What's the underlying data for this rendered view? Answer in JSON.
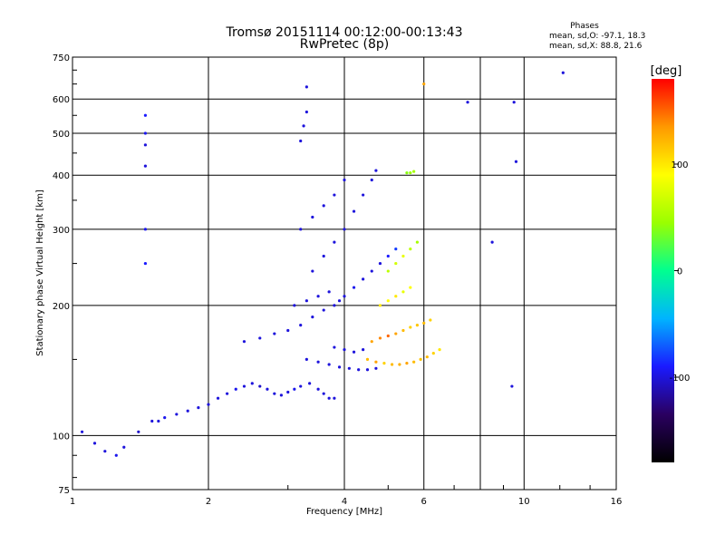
{
  "chart_data": {
    "type": "scatter",
    "title": "Tromsø 20151114 00:12:00-00:13:43",
    "subtitle": "RwPretec (8p)",
    "xlabel": "Frequency [MHz]",
    "ylabel": "Stationary phase Virtual Height [km]",
    "x_scale": "log",
    "y_scale": "log",
    "xlim": [
      1,
      16
    ],
    "ylim": [
      75,
      750
    ],
    "x_ticks": [
      1,
      2,
      4,
      6,
      10,
      16
    ],
    "x_gridlines": [
      2,
      4,
      6,
      8,
      10
    ],
    "y_ticks": [
      75,
      100,
      200,
      300,
      400,
      500,
      600,
      750
    ],
    "grid": true,
    "legend": {
      "title": "Phases",
      "lines": [
        "mean, sd,O:  -97.1, 18.3",
        "mean, sd,X:   88.8, 21.6"
      ],
      "placement": "top-right"
    },
    "colorbar": {
      "label": "[deg]",
      "placement": "right",
      "range": [
        -180,
        180
      ],
      "ticks": [
        100,
        0,
        -100
      ],
      "tick_labels": [
        "100",
        "0",
        "-100"
      ],
      "colormap": [
        "#000000",
        "#2a0060",
        "#1a1aff",
        "#00b4ff",
        "#00ff90",
        "#9aff00",
        "#ffff00",
        "#ff9900",
        "#ff0000"
      ]
    },
    "series": [
      {
        "points": [
          [
            1.05,
            102,
            -100
          ],
          [
            1.12,
            96,
            -100
          ],
          [
            1.18,
            92,
            -100
          ],
          [
            1.25,
            90,
            -95
          ],
          [
            1.3,
            94,
            -100
          ],
          [
            1.4,
            102,
            -105
          ],
          [
            1.5,
            108,
            -100
          ],
          [
            1.55,
            108,
            -100
          ],
          [
            1.6,
            110,
            -95
          ],
          [
            1.7,
            112,
            -100
          ],
          [
            1.8,
            114,
            -100
          ],
          [
            1.9,
            116,
            -100
          ],
          [
            2.0,
            118,
            -100
          ],
          [
            2.1,
            122,
            -100
          ],
          [
            2.2,
            125,
            -100
          ],
          [
            2.3,
            128,
            -95
          ],
          [
            2.4,
            130,
            -100
          ],
          [
            2.5,
            132,
            -100
          ],
          [
            2.6,
            130,
            -105
          ],
          [
            2.7,
            128,
            -100
          ],
          [
            2.8,
            125,
            -100
          ],
          [
            2.9,
            124,
            -100
          ],
          [
            3.0,
            126,
            -100
          ],
          [
            3.1,
            128,
            -95
          ],
          [
            3.2,
            130,
            -100
          ],
          [
            3.35,
            132,
            -100
          ],
          [
            3.5,
            128,
            -100
          ],
          [
            3.6,
            125,
            -100
          ],
          [
            3.7,
            122,
            -100
          ],
          [
            3.8,
            122,
            -100
          ],
          [
            2.4,
            165,
            -100
          ],
          [
            2.6,
            168,
            -100
          ],
          [
            2.8,
            172,
            -100
          ],
          [
            3.0,
            175,
            -100
          ],
          [
            3.2,
            180,
            -100
          ],
          [
            3.4,
            188,
            -100
          ],
          [
            3.6,
            195,
            -100
          ],
          [
            3.8,
            200,
            -100
          ],
          [
            4.0,
            210,
            -100
          ],
          [
            4.2,
            220,
            -95
          ],
          [
            4.4,
            230,
            -100
          ],
          [
            4.6,
            240,
            -100
          ],
          [
            4.8,
            250,
            -100
          ],
          [
            5.0,
            260,
            -90
          ],
          [
            5.2,
            270,
            -80
          ],
          [
            3.3,
            150,
            -100
          ],
          [
            3.5,
            148,
            -100
          ],
          [
            3.7,
            146,
            -100
          ],
          [
            3.9,
            144,
            -100
          ],
          [
            4.1,
            143,
            -100
          ],
          [
            4.3,
            142,
            -100
          ],
          [
            4.5,
            142,
            -100
          ],
          [
            4.7,
            143,
            -100
          ],
          [
            3.8,
            160,
            -100
          ],
          [
            4.0,
            158,
            -100
          ],
          [
            4.2,
            156,
            -100
          ],
          [
            4.4,
            158,
            -100
          ],
          [
            3.4,
            240,
            -100
          ],
          [
            3.6,
            260,
            -100
          ],
          [
            3.8,
            280,
            -100
          ],
          [
            4.0,
            300,
            -100
          ],
          [
            4.2,
            330,
            -100
          ],
          [
            4.4,
            360,
            -100
          ],
          [
            4.6,
            390,
            -100
          ],
          [
            4.7,
            410,
            -100
          ],
          [
            3.2,
            300,
            -100
          ],
          [
            3.4,
            320,
            -100
          ],
          [
            3.6,
            340,
            -100
          ],
          [
            3.8,
            360,
            -100
          ],
          [
            4.0,
            390,
            -100
          ],
          [
            3.1,
            200,
            -100
          ],
          [
            3.3,
            205,
            -100
          ],
          [
            3.5,
            210,
            -100
          ],
          [
            3.7,
            215,
            -100
          ],
          [
            3.9,
            205,
            -100
          ],
          [
            1.45,
            470,
            -100
          ],
          [
            1.45,
            500,
            -95
          ],
          [
            1.45,
            550,
            -90
          ],
          [
            1.45,
            420,
            -100
          ],
          [
            1.45,
            300,
            -95
          ],
          [
            1.45,
            250,
            -90
          ],
          [
            3.2,
            480,
            -100
          ],
          [
            3.25,
            520,
            -100
          ],
          [
            3.3,
            560,
            -100
          ],
          [
            3.3,
            640,
            -100
          ],
          [
            4.5,
            150,
            120
          ],
          [
            4.7,
            148,
            130
          ],
          [
            4.9,
            147,
            110
          ],
          [
            5.1,
            146,
            120
          ],
          [
            5.3,
            146,
            125
          ],
          [
            5.5,
            147,
            130
          ],
          [
            5.7,
            148,
            120
          ],
          [
            5.9,
            150,
            115
          ],
          [
            6.1,
            152,
            120
          ],
          [
            6.3,
            155,
            110
          ],
          [
            6.5,
            158,
            100
          ],
          [
            4.6,
            165,
            130
          ],
          [
            4.8,
            168,
            140
          ],
          [
            5.0,
            170,
            150
          ],
          [
            5.2,
            172,
            130
          ],
          [
            5.4,
            175,
            120
          ],
          [
            5.6,
            178,
            110
          ],
          [
            5.8,
            180,
            115
          ],
          [
            6.0,
            182,
            120
          ],
          [
            6.2,
            185,
            110
          ],
          [
            4.8,
            200,
            100
          ],
          [
            5.0,
            205,
            90
          ],
          [
            5.2,
            210,
            100
          ],
          [
            5.4,
            215,
            80
          ],
          [
            5.6,
            220,
            90
          ],
          [
            5.0,
            240,
            60
          ],
          [
            5.2,
            250,
            70
          ],
          [
            5.4,
            260,
            80
          ],
          [
            5.6,
            270,
            60
          ],
          [
            5.8,
            280,
            50
          ],
          [
            5.5,
            405,
            40
          ],
          [
            5.6,
            405,
            45
          ],
          [
            5.7,
            408,
            50
          ],
          [
            6.0,
            650,
            130
          ],
          [
            8.5,
            280,
            -100
          ],
          [
            9.6,
            430,
            -100
          ],
          [
            9.5,
            590,
            -100
          ],
          [
            7.5,
            590,
            -100
          ],
          [
            12.2,
            690,
            -100
          ],
          [
            9.4,
            130,
            -100
          ]
        ]
      }
    ]
  }
}
